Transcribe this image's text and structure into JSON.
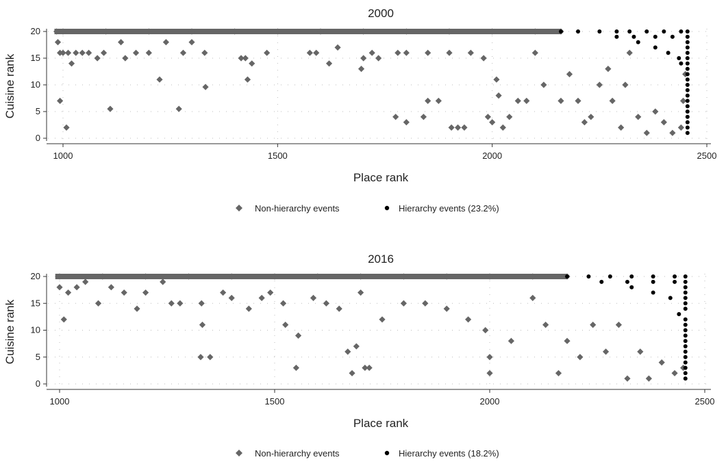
{
  "chart_data": [
    {
      "type": "scatter",
      "title": "2000",
      "xlabel": "Place rank",
      "ylabel": "Cuisine rank",
      "xlim": [
        980,
        2500
      ],
      "ylim": [
        0,
        20
      ],
      "xticks": [
        "1000",
        "1500",
        "2000",
        "2500"
      ],
      "yticks": [
        "0",
        "5",
        "10",
        "15",
        "20"
      ],
      "grid": true,
      "legend_position": "bottom",
      "marker_colors": {
        "non_hierarchy": "#666666",
        "hierarchy": "#000000"
      },
      "series": [
        {
          "name": "Non-hierarchy events",
          "marker": "diamond",
          "points": [
            [
              985,
              20
            ],
            [
              1000,
              20
            ],
            [
              1100,
              20
            ],
            [
              1200,
              20
            ],
            [
              1300,
              20
            ],
            [
              1400,
              20
            ],
            [
              1500,
              20
            ],
            [
              1600,
              20
            ],
            [
              1700,
              20
            ],
            [
              1800,
              20
            ],
            [
              1900,
              20
            ],
            [
              2000,
              20
            ],
            [
              2100,
              20
            ],
            [
              2160,
              20
            ],
            [
              988,
              18
            ],
            [
              993,
              16
            ],
            [
              1000,
              16
            ],
            [
              1012,
              16
            ],
            [
              1030,
              16
            ],
            [
              1045,
              16
            ],
            [
              1060,
              16
            ],
            [
              1080,
              15
            ],
            [
              1095,
              16
            ],
            [
              1020,
              14
            ],
            [
              993,
              7
            ],
            [
              1008,
              2
            ],
            [
              1110,
              5.5
            ],
            [
              1135,
              18
            ],
            [
              1145,
              15
            ],
            [
              1170,
              16
            ],
            [
              1200,
              16
            ],
            [
              1225,
              11
            ],
            [
              1240,
              18
            ],
            [
              1270,
              5.5
            ],
            [
              1280,
              16
            ],
            [
              1300,
              18
            ],
            [
              1330,
              16
            ],
            [
              1332,
              9.6
            ],
            [
              1415,
              15
            ],
            [
              1425,
              15
            ],
            [
              1430,
              11
            ],
            [
              1440,
              14
            ],
            [
              1475,
              16
            ],
            [
              1575,
              16
            ],
            [
              1590,
              16
            ],
            [
              1620,
              14
            ],
            [
              1640,
              17
            ],
            [
              1695,
              13
            ],
            [
              1700,
              15
            ],
            [
              1720,
              16
            ],
            [
              1735,
              15
            ],
            [
              1780,
              16
            ],
            [
              1800,
              16
            ],
            [
              1850,
              16
            ],
            [
              1900,
              16
            ],
            [
              1950,
              16
            ],
            [
              1980,
              15
            ],
            [
              1775,
              4
            ],
            [
              1800,
              3
            ],
            [
              1840,
              4
            ],
            [
              1850,
              7
            ],
            [
              1875,
              7
            ],
            [
              1905,
              2
            ],
            [
              1920,
              2
            ],
            [
              1935,
              2
            ],
            [
              1990,
              4
            ],
            [
              2000,
              3
            ],
            [
              2010,
              11
            ],
            [
              2015,
              8
            ],
            [
              2025,
              2
            ],
            [
              2040,
              4
            ],
            [
              2060,
              7
            ],
            [
              2080,
              7
            ],
            [
              2100,
              16
            ],
            [
              2120,
              10
            ],
            [
              2160,
              7
            ],
            [
              2180,
              12
            ],
            [
              2200,
              7
            ],
            [
              2215,
              3
            ],
            [
              2230,
              4
            ],
            [
              2250,
              10
            ],
            [
              2270,
              13
            ],
            [
              2280,
              7
            ],
            [
              2300,
              2
            ],
            [
              2310,
              10
            ],
            [
              2320,
              16
            ],
            [
              2340,
              4
            ],
            [
              2360,
              1
            ],
            [
              2380,
              5
            ],
            [
              2400,
              3
            ],
            [
              2420,
              1
            ],
            [
              2440,
              2
            ],
            [
              2445,
              7
            ],
            [
              2450,
              12
            ]
          ]
        },
        {
          "name": "Hierarchy events (23.2%)",
          "marker": "dot",
          "points": [
            [
              2160,
              20
            ],
            [
              2200,
              20
            ],
            [
              2250,
              20
            ],
            [
              2290,
              20
            ],
            [
              2320,
              20
            ],
            [
              2360,
              20
            ],
            [
              2400,
              20
            ],
            [
              2440,
              20
            ],
            [
              2455,
              20
            ],
            [
              2290,
              19
            ],
            [
              2330,
              19
            ],
            [
              2380,
              19
            ],
            [
              2420,
              19
            ],
            [
              2455,
              19
            ],
            [
              2340,
              18
            ],
            [
              2380,
              17
            ],
            [
              2410,
              16
            ],
            [
              2435,
              15
            ],
            [
              2440,
              14
            ],
            [
              2455,
              18
            ],
            [
              2455,
              17
            ],
            [
              2455,
              16
            ],
            [
              2455,
              15
            ],
            [
              2455,
              14
            ],
            [
              2455,
              13
            ],
            [
              2455,
              12
            ],
            [
              2455,
              11
            ],
            [
              2455,
              10
            ],
            [
              2455,
              9
            ],
            [
              2455,
              8
            ],
            [
              2455,
              7
            ],
            [
              2455,
              6
            ],
            [
              2455,
              5
            ],
            [
              2455,
              4
            ],
            [
              2455,
              3
            ],
            [
              2455,
              2
            ],
            [
              2455,
              1
            ]
          ]
        }
      ]
    },
    {
      "type": "scatter",
      "title": "2016",
      "xlabel": "Place rank",
      "ylabel": "Cuisine rank",
      "xlim": [
        990,
        2500
      ],
      "ylim": [
        0,
        20
      ],
      "xticks": [
        "1000",
        "1500",
        "2000",
        "2500"
      ],
      "yticks": [
        "0",
        "5",
        "10",
        "15",
        "20"
      ],
      "grid": true,
      "legend_position": "bottom",
      "marker_colors": {
        "non_hierarchy": "#666666",
        "hierarchy": "#000000"
      },
      "series": [
        {
          "name": "Non-hierarchy events",
          "marker": "diamond",
          "points": [
            [
              1000,
              20
            ],
            [
              1100,
              20
            ],
            [
              1200,
              20
            ],
            [
              1300,
              20
            ],
            [
              1400,
              20
            ],
            [
              1500,
              20
            ],
            [
              1600,
              20
            ],
            [
              1700,
              20
            ],
            [
              1800,
              20
            ],
            [
              1900,
              20
            ],
            [
              2000,
              20
            ],
            [
              2100,
              20
            ],
            [
              2180,
              20
            ],
            [
              1000,
              18
            ],
            [
              1010,
              12
            ],
            [
              1020,
              17
            ],
            [
              1040,
              18
            ],
            [
              1060,
              19
            ],
            [
              1090,
              15
            ],
            [
              1120,
              18
            ],
            [
              1150,
              17
            ],
            [
              1180,
              14
            ],
            [
              1200,
              17
            ],
            [
              1240,
              19
            ],
            [
              1260,
              15
            ],
            [
              1280,
              15
            ],
            [
              1330,
              15
            ],
            [
              1332,
              11
            ],
            [
              1328,
              5
            ],
            [
              1350,
              5
            ],
            [
              1380,
              17
            ],
            [
              1400,
              16
            ],
            [
              1440,
              14
            ],
            [
              1470,
              16
            ],
            [
              1490,
              17
            ],
            [
              1520,
              15
            ],
            [
              1525,
              11
            ],
            [
              1555,
              9
            ],
            [
              1550,
              3
            ],
            [
              1590,
              16
            ],
            [
              1620,
              15
            ],
            [
              1650,
              14
            ],
            [
              1670,
              6
            ],
            [
              1680,
              2
            ],
            [
              1690,
              7
            ],
            [
              1700,
              17
            ],
            [
              1710,
              3
            ],
            [
              1720,
              3
            ],
            [
              1750,
              12
            ],
            [
              1800,
              15
            ],
            [
              1850,
              15
            ],
            [
              1900,
              14
            ],
            [
              1950,
              12
            ],
            [
              1990,
              10
            ],
            [
              2000,
              5
            ],
            [
              2000,
              2
            ],
            [
              2050,
              8
            ],
            [
              2100,
              16
            ],
            [
              2130,
              11
            ],
            [
              2160,
              2
            ],
            [
              2180,
              8
            ],
            [
              2210,
              5
            ],
            [
              2240,
              11
            ],
            [
              2270,
              6
            ],
            [
              2300,
              11
            ],
            [
              2320,
              1
            ],
            [
              2350,
              6
            ],
            [
              2370,
              1
            ],
            [
              2400,
              4
            ],
            [
              2430,
              2
            ],
            [
              2450,
              3
            ]
          ]
        },
        {
          "name": "Hierarchy events (18.2%)",
          "marker": "dot",
          "points": [
            [
              2180,
              20
            ],
            [
              2230,
              20
            ],
            [
              2280,
              20
            ],
            [
              2330,
              20
            ],
            [
              2380,
              20
            ],
            [
              2430,
              20
            ],
            [
              2455,
              20
            ],
            [
              2260,
              19
            ],
            [
              2320,
              19
            ],
            [
              2380,
              19
            ],
            [
              2430,
              19
            ],
            [
              2455,
              19
            ],
            [
              2330,
              18
            ],
            [
              2380,
              17
            ],
            [
              2420,
              16
            ],
            [
              2440,
              13
            ],
            [
              2455,
              18
            ],
            [
              2455,
              17
            ],
            [
              2455,
              16
            ],
            [
              2455,
              15
            ],
            [
              2455,
              14
            ],
            [
              2455,
              12
            ],
            [
              2455,
              11
            ],
            [
              2455,
              10
            ],
            [
              2455,
              9
            ],
            [
              2455,
              8
            ],
            [
              2455,
              7
            ],
            [
              2455,
              6
            ],
            [
              2455,
              5
            ],
            [
              2455,
              4
            ],
            [
              2455,
              3
            ],
            [
              2455,
              2
            ],
            [
              2455,
              1
            ]
          ]
        }
      ]
    }
  ]
}
